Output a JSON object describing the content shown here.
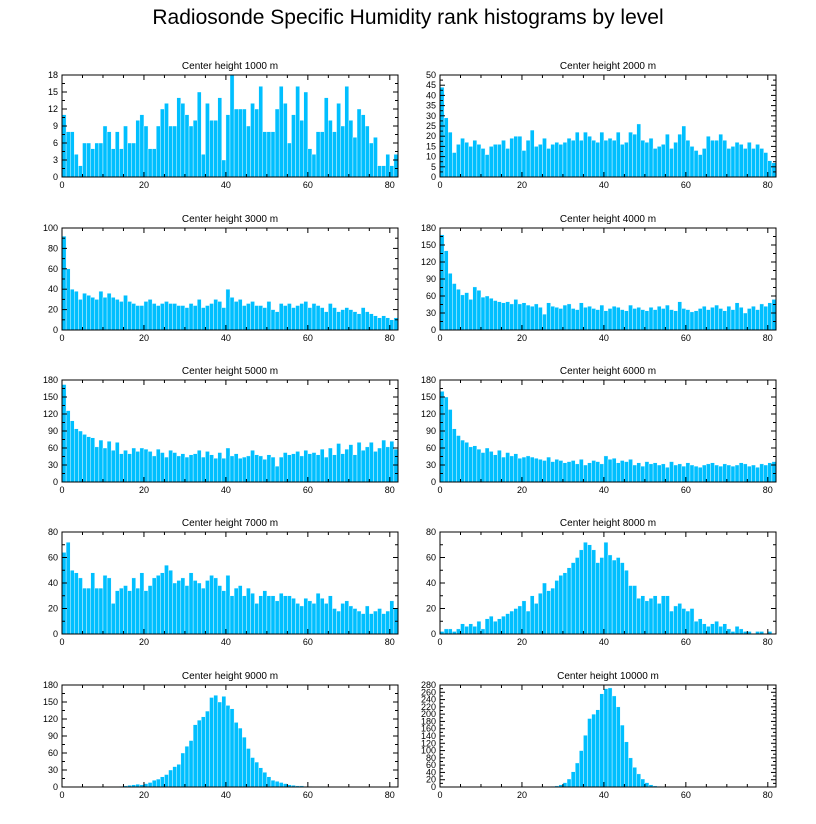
{
  "title": "Radiosonde Specific Humidity rank histograms by level",
  "colors": {
    "bar": "#00bfff",
    "axis": "#000000",
    "background": "#ffffff"
  },
  "chart_data": [
    {
      "type": "bar",
      "title": "Center height 1000 m",
      "xlim": [
        0,
        82
      ],
      "ylim": [
        0,
        18
      ],
      "xticks": [
        0,
        20,
        40,
        60,
        80
      ],
      "yticks": [
        0,
        3,
        6,
        9,
        12,
        15,
        18
      ],
      "values": [
        11,
        8,
        8,
        4,
        2,
        6,
        6,
        5,
        6,
        6,
        9,
        8,
        5,
        8,
        5,
        9,
        6,
        6,
        10,
        11,
        9,
        5,
        5,
        9,
        12,
        13,
        9,
        9,
        14,
        13,
        11,
        9,
        10,
        15,
        4,
        13,
        10,
        10,
        14,
        3,
        11,
        18,
        12,
        12,
        12,
        9,
        13,
        12,
        16,
        8,
        8,
        8,
        12,
        16,
        13,
        6,
        11,
        16,
        10,
        15,
        5,
        4,
        8,
        8,
        14,
        10,
        8,
        13,
        9,
        16,
        10,
        7,
        12,
        11,
        9,
        6,
        7,
        2,
        2,
        4,
        2,
        4
      ]
    },
    {
      "type": "bar",
      "title": "Center height 2000 m",
      "xlim": [
        0,
        82
      ],
      "ylim": [
        0,
        50
      ],
      "xticks": [
        0,
        20,
        40,
        60,
        80
      ],
      "yticks": [
        0,
        5,
        10,
        15,
        20,
        25,
        30,
        35,
        40,
        45,
        50
      ],
      "values": [
        44,
        29,
        22,
        12,
        16,
        19,
        17,
        15,
        18,
        16,
        14,
        11,
        15,
        16,
        16,
        18,
        14,
        19,
        20,
        20,
        13,
        18,
        23,
        15,
        16,
        19,
        14,
        16,
        17,
        16,
        17,
        19,
        18,
        22,
        18,
        22,
        20,
        18,
        17,
        22,
        18,
        19,
        18,
        22,
        16,
        17,
        22,
        21,
        26,
        18,
        17,
        19,
        14,
        15,
        16,
        21,
        14,
        17,
        21,
        25,
        18,
        15,
        13,
        11,
        14,
        20,
        18,
        18,
        21,
        18,
        14,
        15,
        17,
        16,
        14,
        17,
        14,
        16,
        14,
        12,
        8,
        7
      ]
    },
    {
      "type": "bar",
      "title": "Center height 3000 m",
      "xlim": [
        0,
        82
      ],
      "ylim": [
        0,
        100
      ],
      "xticks": [
        0,
        20,
        40,
        60,
        80
      ],
      "yticks": [
        0,
        20,
        40,
        60,
        80,
        100
      ],
      "values": [
        92,
        60,
        40,
        38,
        30,
        36,
        34,
        32,
        30,
        38,
        32,
        36,
        32,
        30,
        28,
        34,
        28,
        26,
        24,
        24,
        28,
        30,
        26,
        24,
        26,
        28,
        26,
        26,
        24,
        24,
        22,
        26,
        24,
        30,
        22,
        24,
        26,
        30,
        28,
        22,
        40,
        32,
        28,
        30,
        24,
        26,
        28,
        24,
        24,
        22,
        28,
        20,
        18,
        26,
        24,
        26,
        22,
        24,
        26,
        28,
        22,
        26,
        24,
        22,
        18,
        26,
        22,
        18,
        20,
        22,
        20,
        18,
        16,
        22,
        18,
        16,
        14,
        12,
        14,
        12,
        10,
        12
      ]
    },
    {
      "type": "bar",
      "title": "Center height 4000 m",
      "xlim": [
        0,
        82
      ],
      "ylim": [
        0,
        180
      ],
      "xticks": [
        0,
        20,
        40,
        60,
        80
      ],
      "yticks": [
        0,
        30,
        60,
        90,
        120,
        150,
        180
      ],
      "values": [
        168,
        140,
        100,
        82,
        72,
        62,
        66,
        54,
        76,
        70,
        58,
        60,
        56,
        52,
        50,
        48,
        50,
        46,
        54,
        46,
        48,
        44,
        42,
        46,
        40,
        28,
        48,
        42,
        40,
        38,
        44,
        46,
        38,
        36,
        48,
        40,
        42,
        38,
        36,
        44,
        34,
        38,
        42,
        40,
        36,
        34,
        44,
        38,
        40,
        36,
        34,
        40,
        36,
        42,
        38,
        44,
        36,
        34,
        50,
        38,
        36,
        32,
        34,
        38,
        42,
        36,
        40,
        44,
        38,
        34,
        42,
        36,
        48,
        40,
        30,
        38,
        42,
        36,
        46,
        42,
        48,
        54
      ]
    },
    {
      "type": "bar",
      "title": "Center height 5000 m",
      "xlim": [
        0,
        82
      ],
      "ylim": [
        0,
        180
      ],
      "xticks": [
        0,
        20,
        40,
        60,
        80
      ],
      "yticks": [
        0,
        30,
        60,
        90,
        120,
        150,
        180
      ],
      "values": [
        172,
        126,
        108,
        94,
        90,
        84,
        80,
        78,
        62,
        74,
        60,
        72,
        56,
        70,
        50,
        56,
        50,
        60,
        54,
        60,
        58,
        54,
        46,
        58,
        52,
        44,
        56,
        52,
        46,
        50,
        44,
        48,
        50,
        56,
        44,
        54,
        48,
        42,
        52,
        42,
        60,
        46,
        50,
        42,
        44,
        46,
        56,
        48,
        46,
        40,
        48,
        44,
        28,
        44,
        52,
        48,
        50,
        54,
        46,
        56,
        50,
        52,
        48,
        58,
        44,
        60,
        48,
        68,
        50,
        58,
        66,
        48,
        70,
        56,
        62,
        70,
        54,
        60,
        74,
        62,
        72,
        58
      ]
    },
    {
      "type": "bar",
      "title": "Center height 6000 m",
      "xlim": [
        0,
        82
      ],
      "ylim": [
        0,
        180
      ],
      "xticks": [
        0,
        20,
        40,
        60,
        80
      ],
      "yticks": [
        0,
        30,
        60,
        90,
        120,
        150,
        180
      ],
      "values": [
        160,
        150,
        128,
        94,
        82,
        74,
        70,
        62,
        64,
        58,
        52,
        60,
        54,
        48,
        56,
        44,
        52,
        46,
        50,
        42,
        44,
        46,
        44,
        42,
        40,
        38,
        44,
        36,
        40,
        38,
        34,
        36,
        38,
        32,
        40,
        30,
        34,
        38,
        36,
        32,
        46,
        40,
        42,
        34,
        38,
        36,
        40,
        30,
        34,
        28,
        36,
        32,
        34,
        30,
        32,
        26,
        36,
        30,
        32,
        28,
        34,
        30,
        28,
        26,
        30,
        32,
        34,
        30,
        28,
        32,
        30,
        28,
        30,
        34,
        32,
        28,
        30,
        26,
        32,
        30,
        34,
        36
      ]
    },
    {
      "type": "bar",
      "title": "Center height 7000 m",
      "xlim": [
        0,
        82
      ],
      "ylim": [
        0,
        80
      ],
      "xticks": [
        0,
        20,
        40,
        60,
        80
      ],
      "yticks": [
        0,
        20,
        40,
        60,
        80
      ],
      "values": [
        64,
        72,
        50,
        48,
        44,
        36,
        36,
        48,
        36,
        36,
        46,
        44,
        24,
        34,
        36,
        38,
        34,
        44,
        36,
        48,
        34,
        38,
        44,
        46,
        48,
        54,
        50,
        40,
        42,
        44,
        38,
        48,
        42,
        40,
        36,
        42,
        46,
        44,
        38,
        34,
        46,
        30,
        36,
        38,
        30,
        36,
        32,
        24,
        30,
        34,
        30,
        30,
        26,
        32,
        30,
        30,
        28,
        24,
        22,
        28,
        26,
        24,
        32,
        28,
        24,
        30,
        20,
        18,
        24,
        26,
        22,
        20,
        18,
        16,
        22,
        16,
        18,
        20,
        16,
        18,
        26,
        20
      ]
    },
    {
      "type": "bar",
      "title": "Center height 8000 m",
      "xlim": [
        0,
        82
      ],
      "ylim": [
        0,
        80
      ],
      "xticks": [
        0,
        20,
        40,
        60,
        80
      ],
      "yticks": [
        0,
        20,
        40,
        60,
        80
      ],
      "values": [
        2,
        4,
        4,
        2,
        4,
        8,
        6,
        8,
        6,
        10,
        4,
        12,
        14,
        10,
        12,
        14,
        16,
        18,
        20,
        22,
        26,
        18,
        30,
        24,
        32,
        40,
        34,
        36,
        42,
        46,
        48,
        52,
        56,
        60,
        66,
        72,
        70,
        66,
        56,
        60,
        72,
        62,
        58,
        60,
        56,
        50,
        38,
        38,
        28,
        30,
        26,
        28,
        30,
        24,
        30,
        30,
        18,
        22,
        24,
        20,
        18,
        20,
        10,
        12,
        8,
        6,
        8,
        10,
        6,
        8,
        4,
        2,
        6,
        4,
        2,
        2,
        0,
        2,
        2,
        0,
        2,
        0
      ]
    },
    {
      "type": "bar",
      "title": "Center height 9000 m",
      "xlim": [
        0,
        82
      ],
      "ylim": [
        0,
        180
      ],
      "xticks": [
        0,
        20,
        40,
        60,
        80
      ],
      "yticks": [
        0,
        30,
        60,
        90,
        120,
        150,
        180
      ],
      "values": [
        0,
        0,
        0,
        0,
        0,
        0,
        0,
        0,
        0,
        0,
        0,
        0,
        0,
        0,
        1,
        2,
        3,
        4,
        5,
        4,
        6,
        8,
        12,
        14,
        18,
        22,
        30,
        36,
        40,
        60,
        72,
        82,
        110,
        118,
        124,
        134,
        158,
        162,
        150,
        160,
        144,
        138,
        114,
        104,
        88,
        68,
        52,
        44,
        34,
        26,
        18,
        12,
        10,
        8,
        6,
        4,
        3,
        2,
        2,
        1,
        1,
        0,
        0,
        1,
        0,
        0,
        0,
        0,
        0,
        0,
        0,
        0,
        0,
        0,
        0,
        0,
        0,
        0,
        0,
        0,
        0,
        0
      ]
    },
    {
      "type": "bar",
      "title": "Center height 10000 m",
      "xlim": [
        0,
        82
      ],
      "ylim": [
        0,
        280
      ],
      "xticks": [
        0,
        20,
        40,
        60,
        80
      ],
      "yticks": [
        0,
        20,
        40,
        60,
        80,
        100,
        120,
        140,
        160,
        180,
        200,
        220,
        240,
        260,
        280
      ],
      "values": [
        0,
        0,
        0,
        0,
        0,
        0,
        0,
        0,
        0,
        0,
        0,
        0,
        0,
        0,
        0,
        0,
        0,
        0,
        0,
        0,
        0,
        0,
        0,
        0,
        0,
        0,
        1,
        2,
        3,
        6,
        12,
        22,
        42,
        66,
        100,
        142,
        188,
        200,
        212,
        256,
        270,
        272,
        250,
        220,
        170,
        124,
        80,
        54,
        36,
        22,
        12,
        6,
        3,
        2,
        1,
        1,
        0,
        0,
        0,
        0,
        0,
        0,
        0,
        0,
        0,
        0,
        0,
        0,
        0,
        0,
        0,
        0,
        0,
        0,
        0,
        0,
        0,
        0,
        0,
        0,
        0,
        0
      ]
    }
  ]
}
